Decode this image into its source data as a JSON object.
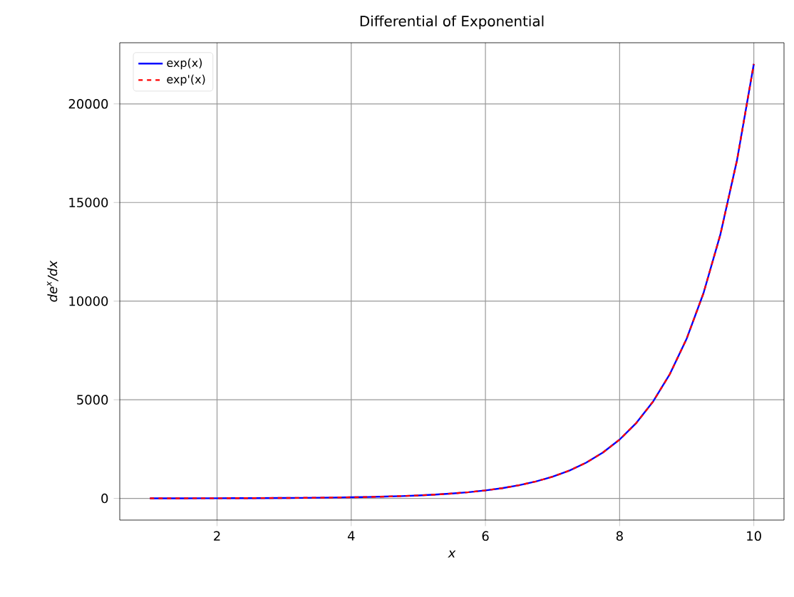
{
  "chart_data": {
    "type": "line",
    "title": "Differential of Exponential",
    "xlabel": "x",
    "ylabel": "de$^{x}$/dx",
    "x": [
      1,
      1.25,
      1.5,
      1.75,
      2,
      2.25,
      2.5,
      2.75,
      3,
      3.25,
      3.5,
      3.75,
      4,
      4.25,
      4.5,
      4.75,
      5,
      5.25,
      5.5,
      5.75,
      6,
      6.25,
      6.5,
      6.75,
      7,
      7.25,
      7.5,
      7.75,
      8,
      8.25,
      8.5,
      8.75,
      9,
      9.25,
      9.5,
      9.75,
      10
    ],
    "series": [
      {
        "name": "exp(x)",
        "color": "#0000ff",
        "line_style": "solid",
        "values": [
          3,
          3,
          4,
          6,
          7,
          9,
          12,
          16,
          20,
          26,
          33,
          42,
          55,
          70,
          90,
          116,
          148,
          191,
          245,
          314,
          403,
          518,
          665,
          854,
          1097,
          1408,
          1808,
          2322,
          2981,
          3828,
          4915,
          6311,
          8103,
          10405,
          13360,
          17154,
          22026
        ]
      },
      {
        "name": "exp'(x)",
        "color": "#ff0000",
        "line_style": "dashed",
        "values": [
          3,
          3,
          4,
          6,
          7,
          9,
          12,
          16,
          20,
          26,
          33,
          42,
          55,
          70,
          90,
          116,
          148,
          191,
          245,
          314,
          403,
          518,
          665,
          854,
          1097,
          1408,
          1808,
          2322,
          2981,
          3828,
          4915,
          6311,
          8103,
          10405,
          13360,
          17154,
          22026
        ]
      }
    ],
    "xlim": [
      0.55,
      10.45
    ],
    "ylim": [
      -1100,
      23100
    ],
    "xticks": [
      2,
      4,
      6,
      8,
      10
    ],
    "yticks": [
      0,
      5000,
      10000,
      15000,
      20000
    ],
    "grid": true,
    "legend": "top left",
    "marker": "none"
  }
}
